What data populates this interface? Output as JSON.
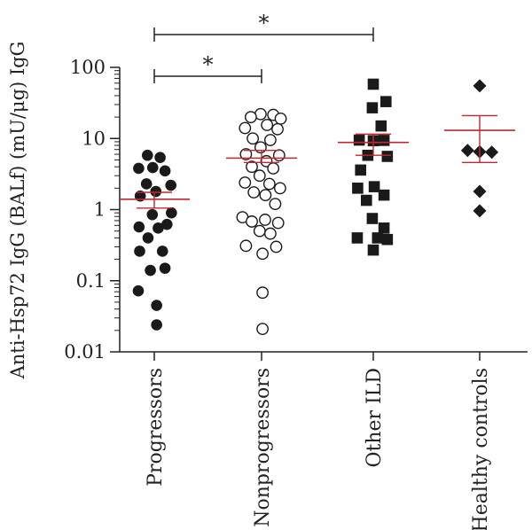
{
  "chart_data": {
    "type": "scatter",
    "scale": "log10",
    "ylabel": "Anti-Hsp72 IgG (BALf) (mU/μg) IgG",
    "ylim": [
      0.01,
      100
    ],
    "yticks": [
      "0.01",
      "0.1",
      "1",
      "10",
      "100"
    ],
    "yticks_values": [
      0.01,
      0.1,
      1,
      10,
      100
    ],
    "categories": [
      "Progressors",
      "Nonprogressors",
      "Other ILD",
      "Healthy controls"
    ],
    "colors": {
      "points": "#1a1a1a",
      "mean_line": "#c0282d",
      "axis": "#222222"
    },
    "series": [
      {
        "marker": "filled-circle",
        "mean": 1.4,
        "sem_low": 1.05,
        "sem_high": 1.75,
        "points": [
          {
            "y": 5.8,
            "dx": -0.35
          },
          {
            "y": 5.4,
            "dx": 0.3
          },
          {
            "y": 3.8,
            "dx": -0.8
          },
          {
            "y": 3.9,
            "dx": -0.08
          },
          {
            "y": 3.5,
            "dx": 0.55
          },
          {
            "y": 2.3,
            "dx": -0.4
          },
          {
            "y": 2.2,
            "dx": 0.85
          },
          {
            "y": 1.8,
            "dx": 0.08
          },
          {
            "y": 1.55,
            "dx": -0.72
          },
          {
            "y": 0.9,
            "dx": 0.88
          },
          {
            "y": 0.85,
            "dx": -0.1
          },
          {
            "y": 0.57,
            "dx": -0.78
          },
          {
            "y": 0.62,
            "dx": 0.65
          },
          {
            "y": 0.55,
            "dx": 0.2
          },
          {
            "y": 0.4,
            "dx": -0.32
          },
          {
            "y": 0.26,
            "dx": -0.75
          },
          {
            "y": 0.26,
            "dx": 0.42
          },
          {
            "y": 0.15,
            "dx": 0.55
          },
          {
            "y": 0.14,
            "dx": -0.2
          },
          {
            "y": 0.072,
            "dx": -0.82
          },
          {
            "y": 0.045,
            "dx": 0.12
          },
          {
            "y": 0.024,
            "dx": 0.12
          }
        ]
      },
      {
        "marker": "open-circle",
        "mean": 5.3,
        "sem_low": 4.6,
        "sem_high": 6.8,
        "points": [
          {
            "y": 22,
            "dx": -0.05
          },
          {
            "y": 21.5,
            "dx": 0.6
          },
          {
            "y": 20,
            "dx": -0.55
          },
          {
            "y": 19,
            "dx": 0.98
          },
          {
            "y": 15.5,
            "dx": 0.28
          },
          {
            "y": 14,
            "dx": -0.85
          },
          {
            "y": 13.5,
            "dx": 0.82
          },
          {
            "y": 10,
            "dx": -0.45
          },
          {
            "y": 9.5,
            "dx": 0.45
          },
          {
            "y": 7.5,
            "dx": -0.05
          },
          {
            "y": 6,
            "dx": -0.8
          },
          {
            "y": 5.8,
            "dx": 0.9
          },
          {
            "y": 4.8,
            "dx": 0.25
          },
          {
            "y": 4.0,
            "dx": -0.5
          },
          {
            "y": 3.8,
            "dx": 0.6
          },
          {
            "y": 3.0,
            "dx": -0.1
          },
          {
            "y": 2.4,
            "dx": -0.85
          },
          {
            "y": 2.3,
            "dx": 0.4
          },
          {
            "y": 2.0,
            "dx": 0.95
          },
          {
            "y": 1.75,
            "dx": -0.4
          },
          {
            "y": 1.6,
            "dx": 0.2
          },
          {
            "y": 1.2,
            "dx": 0.7
          },
          {
            "y": 0.78,
            "dx": -0.98
          },
          {
            "y": 0.72,
            "dx": 0.18
          },
          {
            "y": 0.68,
            "dx": -0.5
          },
          {
            "y": 0.65,
            "dx": 0.85
          },
          {
            "y": 0.5,
            "dx": -0.1
          },
          {
            "y": 0.46,
            "dx": 0.45
          },
          {
            "y": 0.31,
            "dx": -0.8
          },
          {
            "y": 0.3,
            "dx": 0.75
          },
          {
            "y": 0.24,
            "dx": 0.05
          },
          {
            "y": 0.068,
            "dx": 0.05
          },
          {
            "y": 0.021,
            "dx": 0.05
          }
        ]
      },
      {
        "marker": "filled-square",
        "mean": 8.8,
        "sem_low": 5.8,
        "sem_high": 11.5,
        "points": [
          {
            "y": 58,
            "dx": 0.0
          },
          {
            "y": 33,
            "dx": 0.65
          },
          {
            "y": 27,
            "dx": -0.05
          },
          {
            "y": 15,
            "dx": 0.4
          },
          {
            "y": 9.5,
            "dx": -0.72
          },
          {
            "y": 9.3,
            "dx": 0.0
          },
          {
            "y": 9.4,
            "dx": 0.55
          },
          {
            "y": 5.8,
            "dx": -0.28
          },
          {
            "y": 5.6,
            "dx": 0.72
          },
          {
            "y": 3.6,
            "dx": -0.65
          },
          {
            "y": 2.0,
            "dx": -0.8
          },
          {
            "y": 2.1,
            "dx": 0.05
          },
          {
            "y": 1.6,
            "dx": 0.55
          },
          {
            "y": 1.35,
            "dx": -0.35
          },
          {
            "y": 0.75,
            "dx": -0.05
          },
          {
            "y": 0.55,
            "dx": 0.55
          },
          {
            "y": 0.4,
            "dx": -0.82
          },
          {
            "y": 0.4,
            "dx": 0.22
          },
          {
            "y": 0.38,
            "dx": 0.72
          },
          {
            "y": 0.27,
            "dx": 0.0
          }
        ]
      },
      {
        "marker": "filled-diamond",
        "mean": 13,
        "sem_low": 4.6,
        "sem_high": 21,
        "points": [
          {
            "y": 55,
            "dx": 0.0
          },
          {
            "y": 6.8,
            "dx": -0.62
          },
          {
            "y": 6.5,
            "dx": 0.0
          },
          {
            "y": 6.4,
            "dx": 0.62
          },
          {
            "y": 1.8,
            "dx": 0.0
          },
          {
            "y": 0.96,
            "dx": 0.0
          }
        ]
      }
    ],
    "significance": [
      {
        "from": 0,
        "to": 2,
        "label": "*"
      },
      {
        "from": 0,
        "to": 1,
        "label": "*"
      }
    ]
  }
}
